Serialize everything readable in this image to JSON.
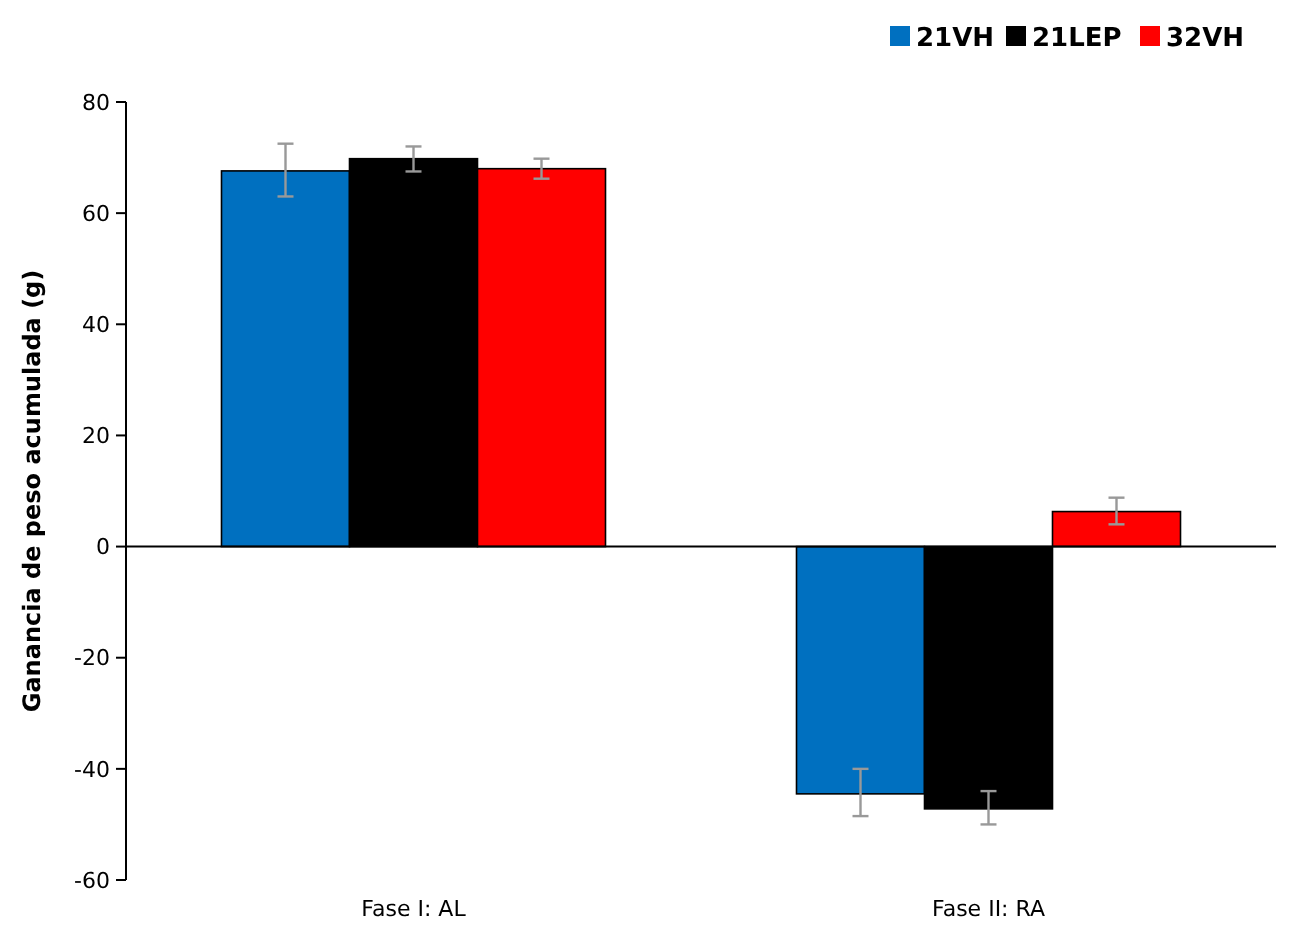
{
  "chart_data": {
    "type": "bar",
    "ylabel": "Ganancia de peso acumulada (g)",
    "categories": [
      "Fase I: AL",
      "Fase II: RA"
    ],
    "series": [
      {
        "name": "21VH",
        "color": "#0070c0",
        "values": [
          67.6,
          -44.5
        ],
        "errors": [
          [
            63,
            72.5
          ],
          [
            -48.5,
            -40
          ]
        ]
      },
      {
        "name": "21LEP",
        "color": "#000000",
        "values": [
          69.8,
          -47.2
        ],
        "errors": [
          [
            67.5,
            72
          ],
          [
            -50,
            -44
          ]
        ]
      },
      {
        "name": "32VH",
        "color": "#ff0000",
        "values": [
          68,
          6.3
        ],
        "errors": [
          [
            66.2,
            69.8
          ],
          [
            4,
            8.8
          ]
        ]
      }
    ],
    "ylim": [
      -60,
      80
    ],
    "yticks": [
      -60,
      -40,
      -20,
      0,
      20,
      40,
      60,
      80
    ],
    "legend": "top right"
  }
}
